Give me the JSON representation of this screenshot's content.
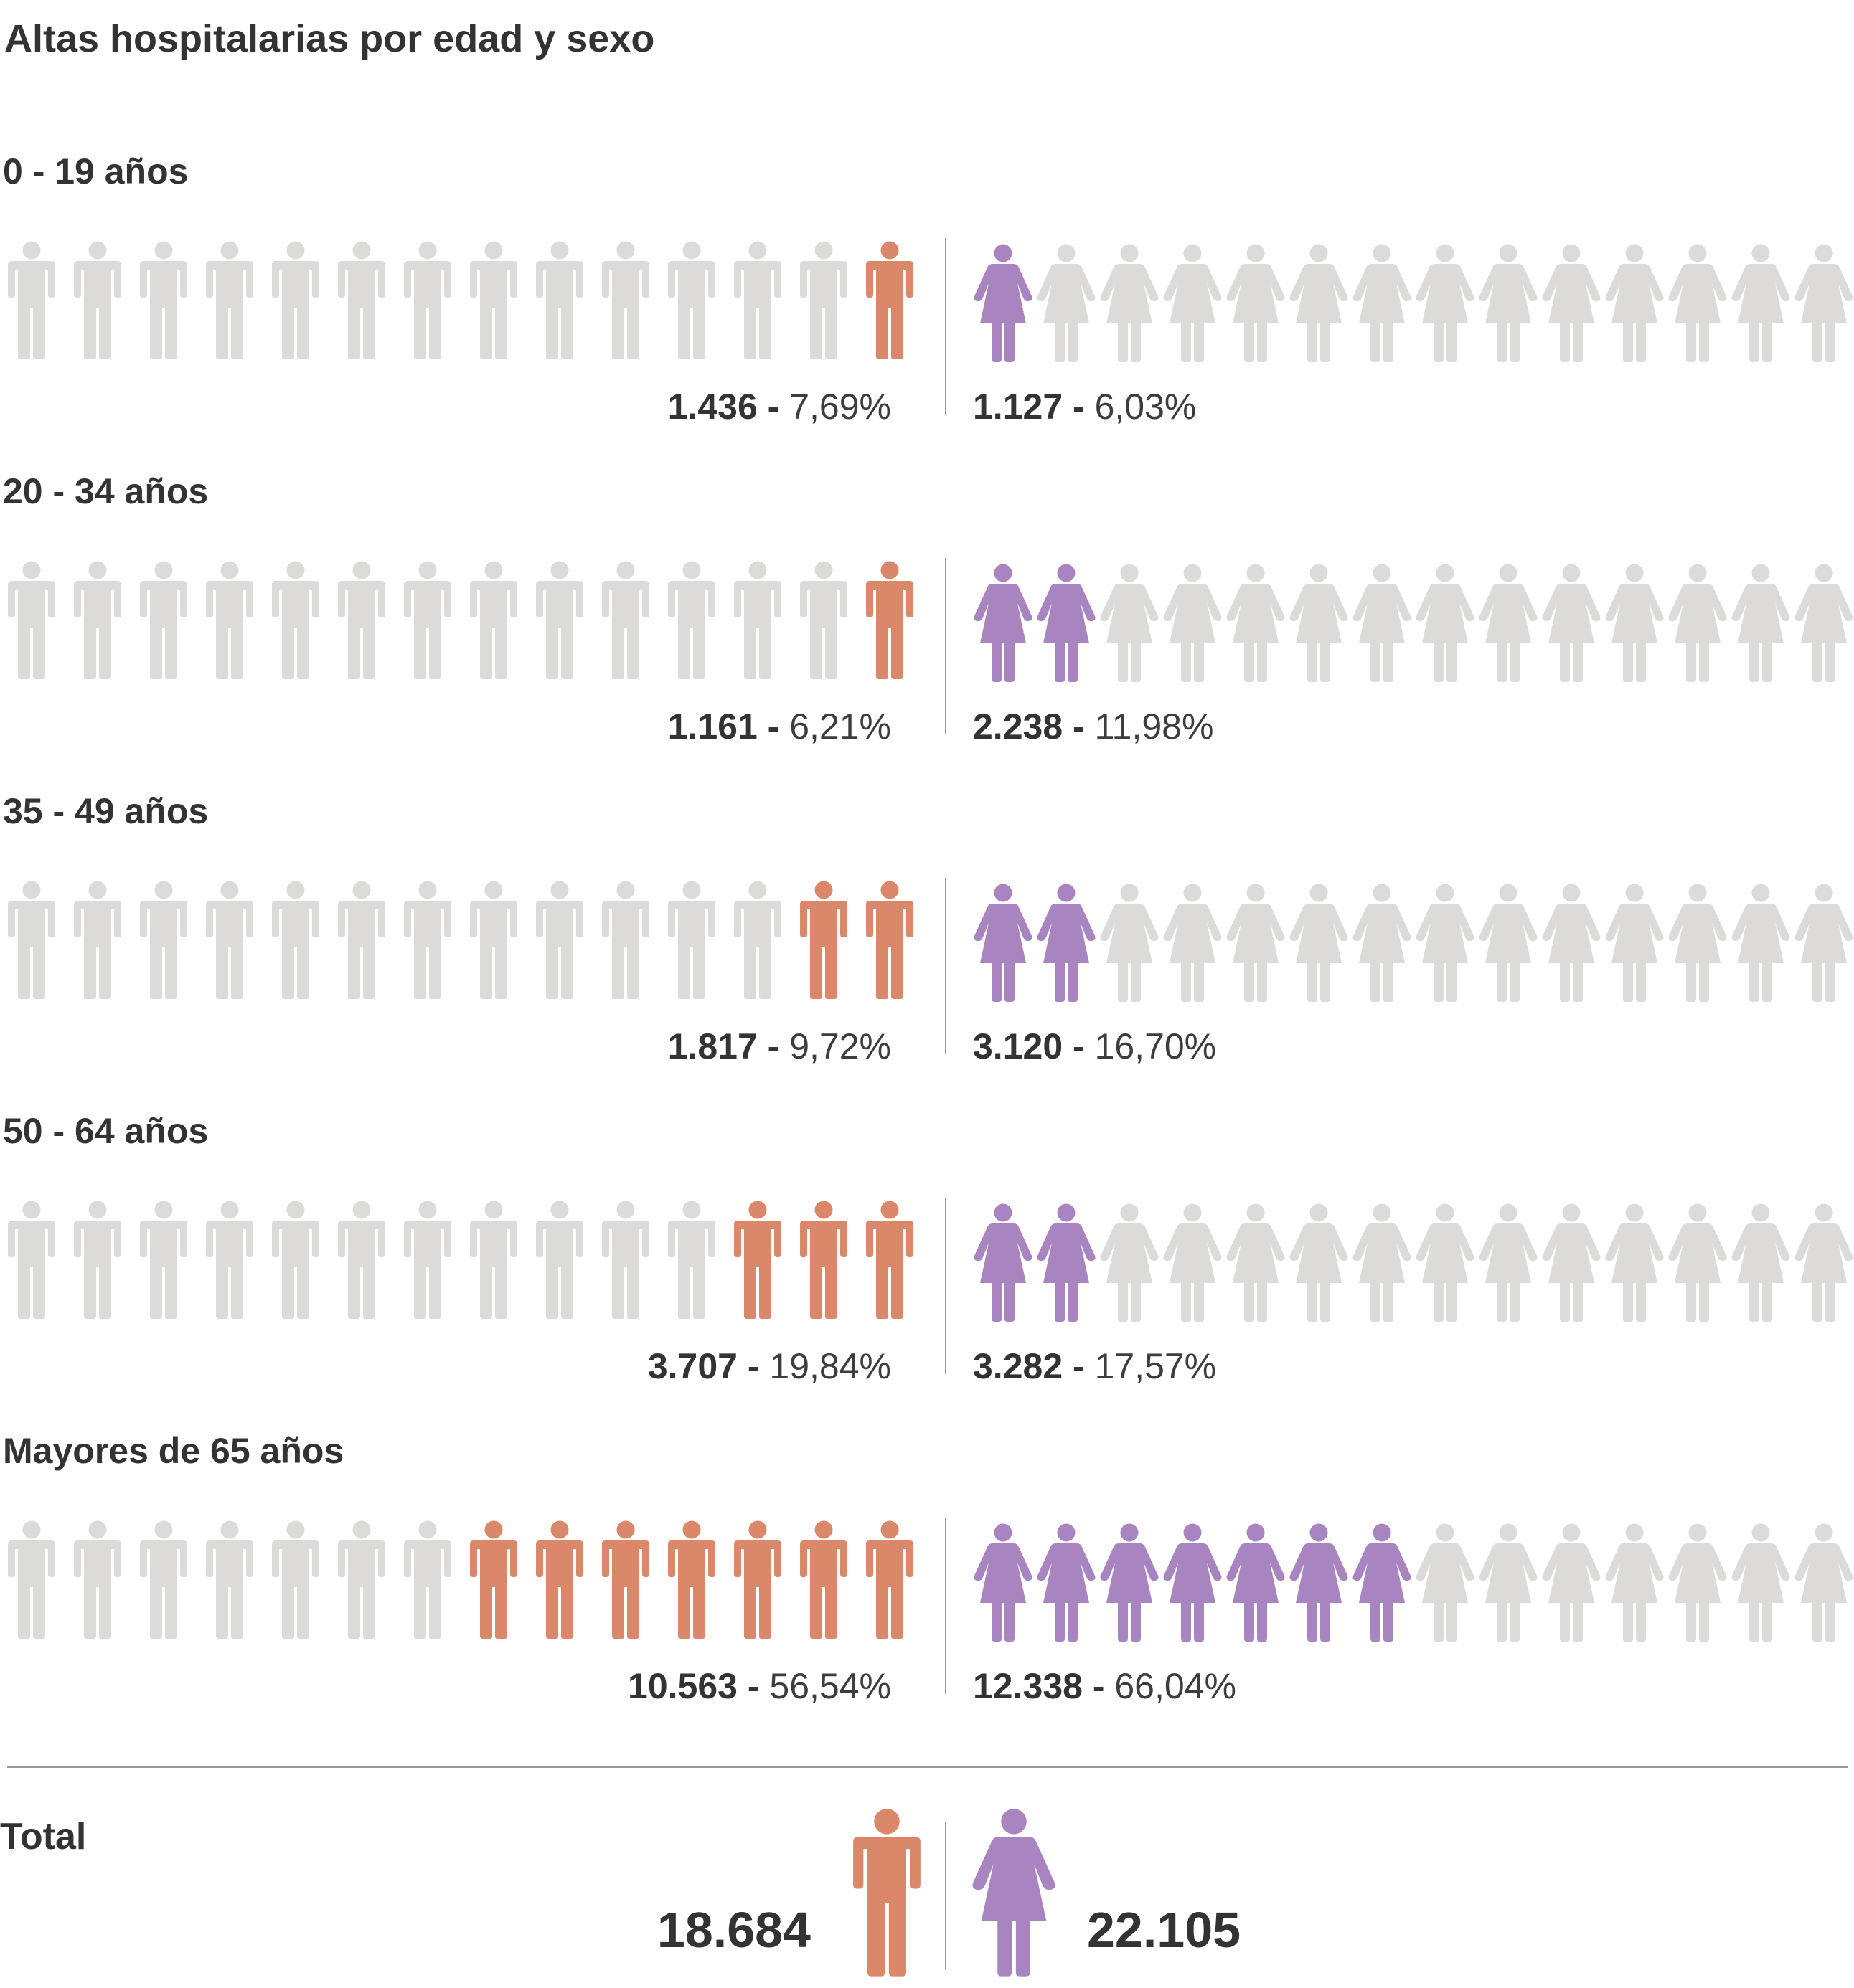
{
  "title": "Altas hospitalarias por edad y sexo",
  "colors": {
    "male": "#DB8769",
    "female": "#A885C0",
    "empty": "#DDDBDA",
    "divider": "#999999",
    "text": "#333333"
  },
  "icons": {
    "male": "man-icon",
    "female": "woman-icon"
  },
  "icons_per_row": 14,
  "percent_per_icon": 100,
  "chart_data": {
    "type": "pictogram",
    "title": "Altas hospitalarias por edad y sexo",
    "unit_per_icon_percent": 1,
    "categories": [
      "0 - 19 años",
      "20 - 34 años",
      "35 - 49 años",
      "50 - 64 años",
      "Mayores de 65 años"
    ],
    "groups": [
      {
        "label": "0 - 19 años",
        "male": {
          "count": "1.436",
          "pct_text": "7,69%",
          "pct": 7.69,
          "fill": 0.1091
        },
        "female": {
          "count": "1.127",
          "pct_text": "6,03%",
          "pct": 6.03,
          "fill": 0.0741
        }
      },
      {
        "label": "20 - 34 años",
        "male": {
          "count": "1.161",
          "pct_text": "6,21%",
          "pct": 6.21,
          "fill": 0.0714
        },
        "female": {
          "count": "2.238",
          "pct_text": "11,98%",
          "pct": 11.98,
          "fill": 0.1429
        }
      },
      {
        "label": "35 - 49 años",
        "male": {
          "count": "1.817",
          "pct_text": "9,72%",
          "pct": 9.72,
          "fill": 0.1429
        },
        "female": {
          "count": "3.120",
          "pct_text": "16,70%",
          "pct": 16.7,
          "fill": 0.1714
        }
      },
      {
        "label": "50 - 64 años",
        "male": {
          "count": "3.707",
          "pct_text": "19,84%",
          "pct": 19.84,
          "fill": 0.2688
        },
        "female": {
          "count": "3.282",
          "pct_text": "17,57%",
          "pct": 17.57,
          "fill": 0.1714
        }
      },
      {
        "label": "Mayores de 65 años",
        "male": {
          "count": "10.563",
          "pct_text": "56,54%",
          "pct": 56.54,
          "fill": 0.5465
        },
        "female": {
          "count": "12.338",
          "pct_text": "66,04%",
          "pct": 66.04,
          "fill": 0.5171
        }
      }
    ],
    "total": {
      "label": "Total",
      "male": "18.684",
      "female": "22.105"
    }
  }
}
